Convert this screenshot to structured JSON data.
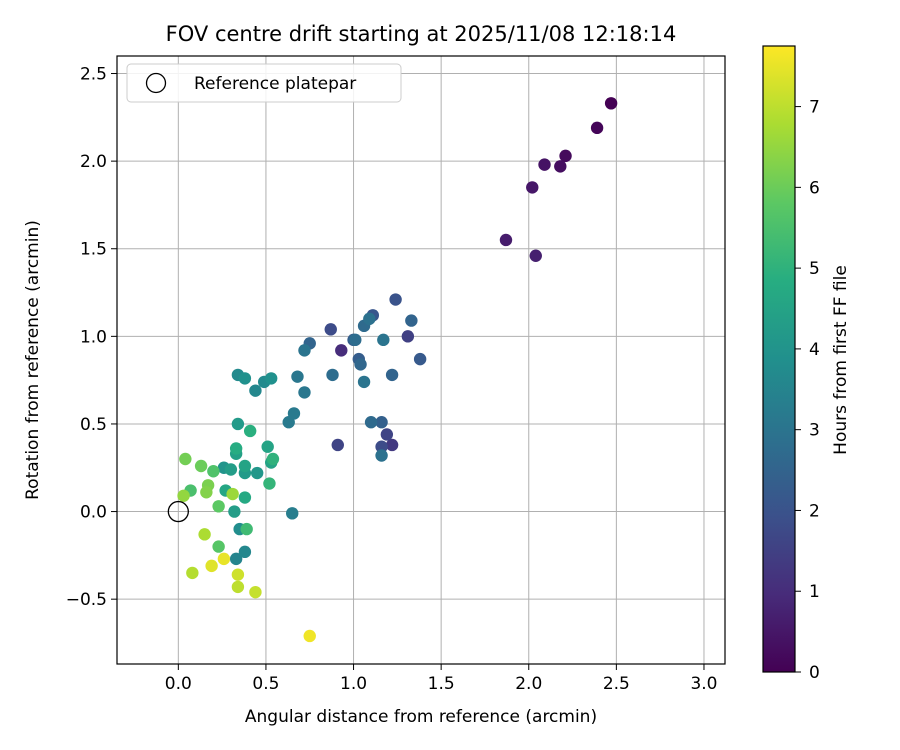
{
  "chart_data": {
    "type": "scatter",
    "title": "FOV centre drift starting at 2025/11/08 12:18:14",
    "xlabel": "Angular distance from reference (arcmin)",
    "ylabel": "Rotation from reference (arcmin)",
    "xlim": [
      -0.35,
      3.12
    ],
    "ylim": [
      -0.87,
      2.6
    ],
    "xticks": [
      0.0,
      0.5,
      1.0,
      1.5,
      2.0,
      2.5,
      3.0
    ],
    "xtick_labels": [
      "0.0",
      "0.5",
      "1.0",
      "1.5",
      "2.0",
      "2.5",
      "3.0"
    ],
    "yticks": [
      -0.5,
      0.0,
      0.5,
      1.0,
      1.5,
      2.0,
      2.5
    ],
    "ytick_labels": [
      "−0.5",
      "0.0",
      "0.5",
      "1.0",
      "1.5",
      "2.0",
      "2.5"
    ],
    "grid": true,
    "legend": {
      "position": "top-left",
      "entries": [
        {
          "label": "Reference platepar",
          "marker": "open-circle"
        }
      ]
    },
    "reference_point": {
      "x": 0.0,
      "y": 0.0
    },
    "colorbar": {
      "label": "Hours from first FF file",
      "min": 0,
      "max": 7.75,
      "ticks": [
        0,
        1,
        2,
        3,
        4,
        5,
        6,
        7
      ],
      "tick_labels": [
        "0",
        "1",
        "2",
        "3",
        "4",
        "5",
        "6",
        "7"
      ],
      "colormap": "viridis"
    },
    "points": [
      {
        "x": 2.47,
        "y": 2.33,
        "c": 0.0
      },
      {
        "x": 2.39,
        "y": 2.19,
        "c": 0.1
      },
      {
        "x": 2.21,
        "y": 2.03,
        "c": 0.2
      },
      {
        "x": 2.18,
        "y": 1.97,
        "c": 0.3
      },
      {
        "x": 2.09,
        "y": 1.98,
        "c": 0.4
      },
      {
        "x": 2.02,
        "y": 1.85,
        "c": 0.5
      },
      {
        "x": 1.87,
        "y": 1.55,
        "c": 0.6
      },
      {
        "x": 2.04,
        "y": 1.46,
        "c": 0.7
      },
      {
        "x": 0.93,
        "y": 0.92,
        "c": 1.0
      },
      {
        "x": 1.22,
        "y": 0.38,
        "c": 1.3
      },
      {
        "x": 1.31,
        "y": 1.0,
        "c": 1.5
      },
      {
        "x": 1.19,
        "y": 0.44,
        "c": 1.6
      },
      {
        "x": 0.91,
        "y": 0.38,
        "c": 1.6
      },
      {
        "x": 0.87,
        "y": 1.04,
        "c": 1.8
      },
      {
        "x": 1.16,
        "y": 0.37,
        "c": 1.8
      },
      {
        "x": 1.24,
        "y": 1.21,
        "c": 2.0
      },
      {
        "x": 1.11,
        "y": 1.12,
        "c": 2.1
      },
      {
        "x": 1.38,
        "y": 0.87,
        "c": 2.2
      },
      {
        "x": 1.0,
        "y": 0.98,
        "c": 2.3
      },
      {
        "x": 1.03,
        "y": 0.87,
        "c": 2.3
      },
      {
        "x": 1.16,
        "y": 0.51,
        "c": 2.4
      },
      {
        "x": 1.33,
        "y": 1.09,
        "c": 2.5
      },
      {
        "x": 1.22,
        "y": 0.78,
        "c": 2.5
      },
      {
        "x": 0.75,
        "y": 0.96,
        "c": 2.5
      },
      {
        "x": 1.04,
        "y": 0.84,
        "c": 2.6
      },
      {
        "x": 1.06,
        "y": 1.06,
        "c": 2.7
      },
      {
        "x": 1.1,
        "y": 0.51,
        "c": 2.7
      },
      {
        "x": 1.01,
        "y": 0.98,
        "c": 2.8
      },
      {
        "x": 0.88,
        "y": 0.78,
        "c": 2.8
      },
      {
        "x": 1.09,
        "y": 1.1,
        "c": 2.9
      },
      {
        "x": 1.16,
        "y": 0.32,
        "c": 2.9
      },
      {
        "x": 0.72,
        "y": 0.92,
        "c": 3.0
      },
      {
        "x": 1.06,
        "y": 0.74,
        "c": 3.0
      },
      {
        "x": 1.17,
        "y": 0.98,
        "c": 3.0
      },
      {
        "x": 0.68,
        "y": 0.77,
        "c": 3.1
      },
      {
        "x": 0.72,
        "y": 0.68,
        "c": 3.1
      },
      {
        "x": 0.63,
        "y": 0.51,
        "c": 3.2
      },
      {
        "x": 0.66,
        "y": 0.56,
        "c": 3.2
      },
      {
        "x": 0.65,
        "y": -0.01,
        "c": 3.3
      },
      {
        "x": 0.33,
        "y": -0.27,
        "c": 3.5
      },
      {
        "x": 0.38,
        "y": -0.23,
        "c": 3.6
      },
      {
        "x": 0.44,
        "y": 0.69,
        "c": 3.6
      },
      {
        "x": 0.49,
        "y": 0.74,
        "c": 3.7
      },
      {
        "x": 0.34,
        "y": 0.78,
        "c": 3.7
      },
      {
        "x": 0.35,
        "y": -0.1,
        "c": 3.8
      },
      {
        "x": 0.53,
        "y": 0.76,
        "c": 3.9
      },
      {
        "x": 0.38,
        "y": 0.76,
        "c": 3.9
      },
      {
        "x": 0.26,
        "y": 0.25,
        "c": 4.0
      },
      {
        "x": 0.45,
        "y": 0.22,
        "c": 4.1
      },
      {
        "x": 0.38,
        "y": 0.22,
        "c": 4.2
      },
      {
        "x": 0.34,
        "y": 0.5,
        "c": 4.2
      },
      {
        "x": 0.32,
        "y": 0.0,
        "c": 4.3
      },
      {
        "x": 0.3,
        "y": 0.24,
        "c": 4.3
      },
      {
        "x": 0.33,
        "y": 0.33,
        "c": 4.4
      },
      {
        "x": 0.53,
        "y": 0.28,
        "c": 4.5
      },
      {
        "x": 0.38,
        "y": 0.26,
        "c": 4.5
      },
      {
        "x": 0.51,
        "y": 0.37,
        "c": 4.5
      },
      {
        "x": 0.27,
        "y": 0.12,
        "c": 4.6
      },
      {
        "x": 0.38,
        "y": 0.08,
        "c": 4.7
      },
      {
        "x": 0.33,
        "y": 0.36,
        "c": 4.8
      },
      {
        "x": 0.41,
        "y": 0.46,
        "c": 4.9
      },
      {
        "x": 0.54,
        "y": 0.3,
        "c": 5.0
      },
      {
        "x": 0.52,
        "y": 0.16,
        "c": 5.1
      },
      {
        "x": 0.39,
        "y": -0.1,
        "c": 5.3
      },
      {
        "x": 0.07,
        "y": 0.12,
        "c": 5.5
      },
      {
        "x": 0.2,
        "y": 0.23,
        "c": 5.6
      },
      {
        "x": 0.23,
        "y": -0.2,
        "c": 5.7
      },
      {
        "x": 0.23,
        "y": 0.03,
        "c": 5.8
      },
      {
        "x": 0.13,
        "y": 0.26,
        "c": 6.0
      },
      {
        "x": 0.04,
        "y": 0.3,
        "c": 6.1
      },
      {
        "x": 0.17,
        "y": 0.15,
        "c": 6.2
      },
      {
        "x": 0.16,
        "y": 0.11,
        "c": 6.3
      },
      {
        "x": 0.03,
        "y": 0.09,
        "c": 6.5
      },
      {
        "x": 0.31,
        "y": 0.1,
        "c": 6.6
      },
      {
        "x": 0.15,
        "y": -0.13,
        "c": 6.8
      },
      {
        "x": 0.08,
        "y": -0.35,
        "c": 6.9
      },
      {
        "x": 0.34,
        "y": -0.43,
        "c": 7.0
      },
      {
        "x": 0.44,
        "y": -0.46,
        "c": 7.1
      },
      {
        "x": 0.34,
        "y": -0.36,
        "c": 7.2
      },
      {
        "x": 0.19,
        "y": -0.31,
        "c": 7.4
      },
      {
        "x": 0.26,
        "y": -0.27,
        "c": 7.5
      },
      {
        "x": 0.75,
        "y": -0.71,
        "c": 7.6
      }
    ]
  }
}
